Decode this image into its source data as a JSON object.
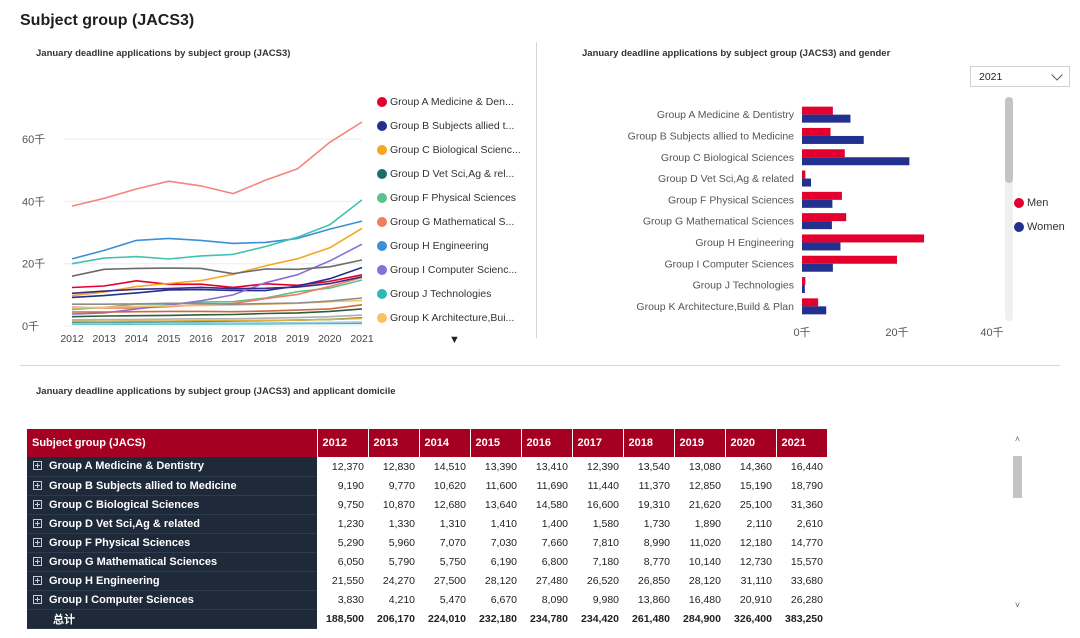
{
  "page": {
    "title": "Subject group (JACS3)"
  },
  "line_chart": {
    "title": "January deadline applications by subject group (JACS3)",
    "more_label": "▼"
  },
  "bar_chart": {
    "title": "January deadline applications by subject group (JACS3) and gender",
    "year_select": {
      "value": "2021"
    },
    "legend": [
      {
        "label": "Men",
        "color": "#e3002d"
      },
      {
        "label": "Women",
        "color": "#22318f"
      }
    ]
  },
  "matrix": {
    "title": "January deadline applications by subject group (JACS3) and applicant domicile",
    "headers": [
      "Subject group (JACS)",
      "2012",
      "2013",
      "2014",
      "2015",
      "2016",
      "2017",
      "2018",
      "2019",
      "2020",
      "2021"
    ],
    "rows": [
      {
        "label": "Group A Medicine & Dentistry",
        "values": [
          "12,370",
          "12,830",
          "14,510",
          "13,390",
          "13,410",
          "12,390",
          "13,540",
          "13,080",
          "14,360",
          "16,440"
        ]
      },
      {
        "label": "Group B Subjects allied to Medicine",
        "values": [
          "9,190",
          "9,770",
          "10,620",
          "11,600",
          "11,690",
          "11,440",
          "11,370",
          "12,850",
          "15,190",
          "18,790"
        ]
      },
      {
        "label": "Group C Biological Sciences",
        "values": [
          "9,750",
          "10,870",
          "12,680",
          "13,640",
          "14,580",
          "16,600",
          "19,310",
          "21,620",
          "25,100",
          "31,360"
        ]
      },
      {
        "label": "Group D Vet Sci,Ag & related",
        "values": [
          "1,230",
          "1,330",
          "1,310",
          "1,410",
          "1,400",
          "1,580",
          "1,730",
          "1,890",
          "2,110",
          "2,610"
        ]
      },
      {
        "label": "Group F Physical Sciences",
        "values": [
          "5,290",
          "5,960",
          "7,070",
          "7,030",
          "7,660",
          "7,810",
          "8,990",
          "11,020",
          "12,180",
          "14,770"
        ]
      },
      {
        "label": "Group G Mathematical Sciences",
        "values": [
          "6,050",
          "5,790",
          "5,750",
          "6,190",
          "6,800",
          "7,180",
          "8,770",
          "10,140",
          "12,730",
          "15,570"
        ]
      },
      {
        "label": "Group H Engineering",
        "values": [
          "21,550",
          "24,270",
          "27,500",
          "28,120",
          "27,480",
          "26,520",
          "26,850",
          "28,120",
          "31,110",
          "33,680"
        ]
      },
      {
        "label": "Group I Computer Sciences",
        "values": [
          "3,830",
          "4,210",
          "5,470",
          "6,670",
          "8,090",
          "9,980",
          "13,860",
          "16,480",
          "20,910",
          "26,280"
        ]
      }
    ],
    "total": {
      "label": "总计",
      "values": [
        "188,500",
        "206,170",
        "224,010",
        "232,180",
        "234,780",
        "234,420",
        "261,480",
        "284,900",
        "326,400",
        "383,250"
      ]
    },
    "scroll": {
      "up": "˄",
      "down": "˅"
    }
  },
  "chart_data": [
    {
      "type": "line",
      "title": "January deadline applications by subject group (JACS3)",
      "x": [
        2012,
        2013,
        2014,
        2015,
        2016,
        2017,
        2018,
        2019,
        2020,
        2021
      ],
      "ylim": [
        0,
        70000
      ],
      "yticks": [
        0,
        20000,
        40000,
        60000
      ],
      "ytick_labels": [
        "0千",
        "20千",
        "40千",
        "60千"
      ],
      "legend_position": "right",
      "series": [
        {
          "name": "Group A Medicine & Den...",
          "color": "#e3002d",
          "values": [
            12370,
            12830,
            14510,
            13390,
            13410,
            12390,
            13540,
            13080,
            14360,
            16440
          ]
        },
        {
          "name": "Group B Subjects allied t...",
          "color": "#22318f",
          "values": [
            9190,
            9770,
            10620,
            11600,
            11690,
            11440,
            11370,
            12850,
            15190,
            18790
          ]
        },
        {
          "name": "Group C Biological Scienc...",
          "color": "#f5a623",
          "values": [
            9750,
            10870,
            12680,
            13640,
            14580,
            16600,
            19310,
            21620,
            25100,
            31360
          ]
        },
        {
          "name": "Group D Vet Sci,Ag & rel...",
          "color": "#1a6e6e",
          "values": [
            1230,
            1330,
            1310,
            1410,
            1400,
            1580,
            1730,
            1890,
            2110,
            2610
          ]
        },
        {
          "name": "Group F Physical Sciences",
          "color": "#5cc18c",
          "values": [
            5290,
            5960,
            7070,
            7030,
            7660,
            7810,
            8990,
            11020,
            12180,
            14770
          ]
        },
        {
          "name": "Group G Mathematical S...",
          "color": "#f07d62",
          "values": [
            6050,
            5790,
            5750,
            6190,
            6800,
            7180,
            8770,
            10140,
            12730,
            15570
          ]
        },
        {
          "name": "Group H Engineering",
          "color": "#3b8fd6",
          "values": [
            21550,
            24270,
            27500,
            28120,
            27480,
            26520,
            26850,
            28120,
            31110,
            33680
          ]
        },
        {
          "name": "Group I Computer Scienc...",
          "color": "#8a6ed8",
          "values": [
            3830,
            4210,
            5470,
            6670,
            8090,
            9980,
            13860,
            16480,
            20910,
            26280
          ]
        },
        {
          "name": "Group J Technologies",
          "color": "#2fb9b4",
          "values": [
            600,
            620,
            640,
            660,
            680,
            700,
            720,
            760,
            800,
            880
          ]
        },
        {
          "name": "Group K Architecture,Bui...",
          "color": "#fbbf68",
          "values": [
            5800,
            6000,
            6300,
            6500,
            6600,
            6700,
            7000,
            7300,
            7800,
            8200
          ]
        },
        {
          "color": "#f4847f",
          "values": [
            38500,
            41000,
            44000,
            46500,
            45000,
            42500,
            46800,
            50500,
            59000,
            65500
          ]
        },
        {
          "color": "#40c2b1",
          "values": [
            20000,
            21800,
            22300,
            21500,
            22500,
            23000,
            25500,
            28500,
            32500,
            40500
          ]
        },
        {
          "color": "#6b6b6b",
          "values": [
            16000,
            18200,
            18500,
            18600,
            18500,
            16800,
            18300,
            18200,
            19000,
            21200
          ]
        },
        {
          "color": "#3b2b8a",
          "values": [
            10500,
            11200,
            11800,
            12000,
            12400,
            12000,
            12100,
            12500,
            13600,
            15800
          ]
        },
        {
          "color": "#8c8c8c",
          "values": [
            7000,
            7000,
            7100,
            7300,
            7200,
            7000,
            7200,
            7400,
            8000,
            9000
          ]
        },
        {
          "color": "#c96a3f",
          "values": [
            4500,
            4500,
            4600,
            4700,
            4700,
            4600,
            4800,
            5100,
            5500,
            6800
          ]
        },
        {
          "color": "#2f5d3a",
          "values": [
            3000,
            3200,
            3300,
            3400,
            3600,
            3700,
            4000,
            4200,
            4700,
            5500
          ]
        },
        {
          "color": "#b0b0b0",
          "values": [
            2000,
            2100,
            2100,
            2200,
            2300,
            2300,
            2500,
            2700,
            3000,
            3500
          ]
        },
        {
          "color": "#d9b23a",
          "values": [
            1500,
            1500,
            1600,
            1600,
            1700,
            1700,
            1800,
            1900,
            2100,
            2400
          ]
        },
        {
          "color": "#9ec9e8",
          "values": [
            800,
            850,
            900,
            900,
            950,
            950,
            1000,
            1050,
            1150,
            1300
          ]
        }
      ]
    },
    {
      "type": "bar",
      "title": "January deadline applications by subject group (JACS3) and gender",
      "orientation": "horizontal",
      "categories": [
        "Group A Medicine & Dentistry",
        "Group B Subjects allied to Medicine",
        "Group C Biological Sciences",
        "Group D Vet Sci,Ag & related",
        "Group F Physical Sciences",
        "Group G Mathematical Sciences",
        "Group H Engineering",
        "Group I Computer Sciences",
        "Group J Technologies",
        "Group K Architecture,Build & Plan"
      ],
      "xlim": [
        0,
        40000
      ],
      "xticks": [
        0,
        20000,
        40000
      ],
      "xtick_labels": [
        "0千",
        "20千",
        "40千"
      ],
      "legend_position": "right",
      "series": [
        {
          "name": "Men",
          "color": "#e3002d",
          "values": [
            6500,
            6000,
            9000,
            700,
            8400,
            9300,
            25700,
            20000,
            700,
            3400
          ]
        },
        {
          "name": "Women",
          "color": "#22318f",
          "values": [
            10200,
            13000,
            22600,
            1900,
            6400,
            6300,
            8100,
            6500,
            600,
            5100
          ]
        }
      ]
    }
  ]
}
